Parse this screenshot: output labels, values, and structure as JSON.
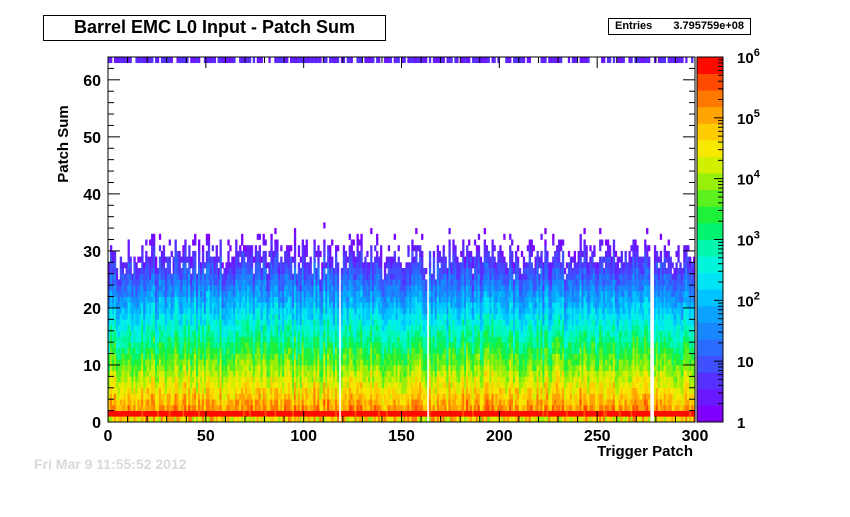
{
  "chart_data": {
    "type": "heatmap",
    "title": "Barrel EMC L0 Input - Patch Sum",
    "stats": {
      "label": "Entries",
      "value": "3.795759e+08"
    },
    "xlabel": "Trigger Patch",
    "ylabel": "Patch Sum",
    "xlim": [
      0,
      300
    ],
    "ylim": [
      0,
      64
    ],
    "x_ticks": [
      "0",
      "50",
      "100",
      "150",
      "200",
      "250",
      "300"
    ],
    "y_ticks": [
      "0",
      "10",
      "20",
      "30",
      "40",
      "50",
      "60"
    ],
    "z_scale": "log",
    "zlim": [
      1,
      1000000
    ],
    "z_ticks": [
      {
        "base": "1",
        "exp": ""
      },
      {
        "base": "10",
        "exp": ""
      },
      {
        "base": "10",
        "exp": "2"
      },
      {
        "base": "10",
        "exp": "3"
      },
      {
        "base": "10",
        "exp": "4"
      },
      {
        "base": "10",
        "exp": "5"
      },
      {
        "base": "10",
        "exp": "6"
      }
    ],
    "bins": {
      "nx": 300,
      "ny": 64
    },
    "palette": [
      "#7f00ff",
      "#6a18ff",
      "#5630ff",
      "#3e50ff",
      "#2a6cff",
      "#1888ff",
      "#0aa4ff",
      "#00c4ff",
      "#00e4f6",
      "#00f6dc",
      "#00f7ae",
      "#00f470",
      "#1ff03a",
      "#5cf01e",
      "#98f00a",
      "#d0f000",
      "#f6e800",
      "#ffcc00",
      "#ffa400",
      "#ff7800",
      "#ff4a00",
      "#ff0a00"
    ],
    "dead_patches": [
      118,
      163,
      277,
      278
    ],
    "footer_text": "Fri Mar  9 11:55:52 2012"
  }
}
